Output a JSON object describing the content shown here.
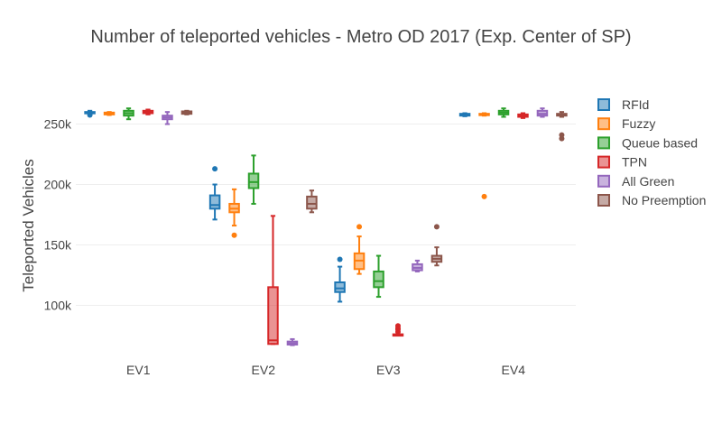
{
  "chart_data": {
    "type": "box",
    "title": "Number of teleported vehicles - Metro OD 2017 (Exp. Center of SP)",
    "xlabel": "",
    "ylabel": "Teleported Vehicles",
    "categories": [
      "EV1",
      "EV2",
      "EV3",
      "EV4"
    ],
    "y_ticks": [
      100000,
      150000,
      200000,
      250000
    ],
    "y_tick_labels": [
      "100k",
      "150k",
      "200k",
      "250k"
    ],
    "ylim": [
      63000,
      287000
    ],
    "grid": true,
    "legend_position": "top-right",
    "series": [
      {
        "name": "RFId",
        "color": "#1f77b4",
        "boxes": [
          {
            "min": 258000,
            "q1": 259000,
            "median": 259500,
            "q3": 260000,
            "max": 261000,
            "outliers": [
              257500
            ]
          },
          {
            "min": 171000,
            "q1": 180000,
            "median": 183000,
            "q3": 191000,
            "max": 200000,
            "outliers": [
              213000
            ]
          },
          {
            "min": 103000,
            "q1": 111000,
            "median": 114000,
            "q3": 119000,
            "max": 132000,
            "outliers": [
              138000
            ]
          },
          {
            "min": 256500,
            "q1": 257000,
            "median": 257500,
            "q3": 258500,
            "max": 259000,
            "outliers": []
          }
        ]
      },
      {
        "name": "Fuzzy",
        "color": "#ff7f0e",
        "boxes": [
          {
            "min": 257500,
            "q1": 258000,
            "median": 258500,
            "q3": 259500,
            "max": 260000,
            "outliers": []
          },
          {
            "min": 166000,
            "q1": 177000,
            "median": 180000,
            "q3": 184000,
            "max": 196000,
            "outliers": [
              158000
            ]
          },
          {
            "min": 126000,
            "q1": 130000,
            "median": 137000,
            "q3": 143000,
            "max": 157000,
            "outliers": [
              165000
            ]
          },
          {
            "min": 257000,
            "q1": 257500,
            "median": 258000,
            "q3": 258500,
            "max": 259000,
            "outliers": [
              190000
            ]
          }
        ]
      },
      {
        "name": "Queue based",
        "color": "#2ca02c",
        "boxes": [
          {
            "min": 254000,
            "q1": 257000,
            "median": 259000,
            "q3": 261000,
            "max": 263000,
            "outliers": []
          },
          {
            "min": 184000,
            "q1": 197000,
            "median": 202000,
            "q3": 209000,
            "max": 224000,
            "outliers": []
          },
          {
            "min": 107000,
            "q1": 115000,
            "median": 120000,
            "q3": 128000,
            "max": 141000,
            "outliers": []
          },
          {
            "min": 256000,
            "q1": 258000,
            "median": 259500,
            "q3": 261000,
            "max": 263000,
            "outliers": []
          }
        ]
      },
      {
        "name": "TPN",
        "color": "#d62728",
        "boxes": [
          {
            "min": 258000,
            "q1": 259000,
            "median": 260000,
            "q3": 261000,
            "max": 262000,
            "outliers": []
          },
          {
            "min": 68000,
            "q1": 68000,
            "median": 71000,
            "q3": 115000,
            "max": 174000,
            "outliers": []
          },
          {
            "min": 75000,
            "q1": 75000,
            "median": 75000,
            "q3": 76000,
            "max": 76000,
            "outliers": [
              78000,
              80000,
              81000,
              83000
            ]
          },
          {
            "min": 255000,
            "q1": 256000,
            "median": 257000,
            "q3": 258000,
            "max": 259000,
            "outliers": []
          }
        ]
      },
      {
        "name": "All Green",
        "color": "#9467bd",
        "boxes": [
          {
            "min": 250000,
            "q1": 254000,
            "median": 255500,
            "q3": 257000,
            "max": 260000,
            "outliers": []
          },
          {
            "min": 67000,
            "q1": 67500,
            "median": 68500,
            "q3": 70000,
            "max": 72000,
            "outliers": []
          },
          {
            "min": 128000,
            "q1": 129000,
            "median": 131000,
            "q3": 134000,
            "max": 137000,
            "outliers": []
          },
          {
            "min": 256000,
            "q1": 257000,
            "median": 258500,
            "q3": 261000,
            "max": 263000,
            "outliers": []
          }
        ]
      },
      {
        "name": "No Preemption",
        "color": "#8c564b",
        "boxes": [
          {
            "min": 258000,
            "q1": 258500,
            "median": 259500,
            "q3": 260500,
            "max": 261000,
            "outliers": []
          },
          {
            "min": 177000,
            "q1": 180000,
            "median": 184000,
            "q3": 190000,
            "max": 195000,
            "outliers": []
          },
          {
            "min": 133000,
            "q1": 136000,
            "median": 138500,
            "q3": 141000,
            "max": 148000,
            "outliers": [
              165000
            ]
          },
          {
            "min": 256000,
            "q1": 257000,
            "median": 257500,
            "q3": 258500,
            "max": 260000,
            "outliers": [
              238000,
              241000
            ]
          }
        ]
      }
    ]
  }
}
